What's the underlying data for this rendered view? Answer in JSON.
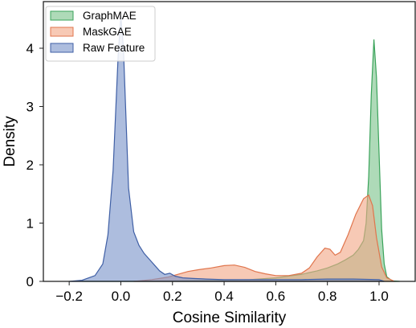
{
  "chart_data": {
    "type": "area",
    "xlabel": "Cosine Similarity",
    "ylabel": "Density",
    "xlim": [
      -0.3,
      1.14
    ],
    "ylim": [
      0,
      4.8
    ],
    "xticks": [
      "−0.2",
      "0.0",
      "0.2",
      "0.4",
      "0.6",
      "0.8",
      "1.0"
    ],
    "xtick_values": [
      -0.2,
      0.0,
      0.2,
      0.4,
      0.6,
      0.8,
      1.0
    ],
    "yticks": [
      "0",
      "1",
      "2",
      "3",
      "4"
    ],
    "ytick_values": [
      0,
      1,
      2,
      3,
      4
    ],
    "grid": false,
    "legend_position": "top-left",
    "series": [
      {
        "name": "GraphMAE",
        "fill": "#7cc48c",
        "stroke": "#3aa35a",
        "x": [
          -0.15,
          0.0,
          0.2,
          0.4,
          0.5,
          0.6,
          0.7,
          0.76,
          0.8,
          0.84,
          0.87,
          0.9,
          0.92,
          0.94,
          0.95,
          0.96,
          0.97,
          0.98,
          0.99,
          1.0,
          1.01,
          1.02,
          1.03,
          1.05,
          1.08
        ],
        "y": [
          0.0,
          0.0,
          0.01,
          0.02,
          0.03,
          0.06,
          0.12,
          0.18,
          0.23,
          0.3,
          0.37,
          0.45,
          0.55,
          0.7,
          1.0,
          1.8,
          3.2,
          4.15,
          3.5,
          2.2,
          0.9,
          0.3,
          0.08,
          0.01,
          0.0
        ]
      },
      {
        "name": "MaskGAE",
        "fill": "#f2a888",
        "stroke": "#e0754d",
        "x": [
          0.05,
          0.12,
          0.18,
          0.22,
          0.26,
          0.3,
          0.35,
          0.4,
          0.44,
          0.48,
          0.52,
          0.56,
          0.6,
          0.65,
          0.7,
          0.73,
          0.76,
          0.79,
          0.81,
          0.83,
          0.85,
          0.88,
          0.91,
          0.94,
          0.96,
          0.975,
          0.99,
          1.01,
          1.03,
          1.06
        ],
        "y": [
          0.0,
          0.03,
          0.07,
          0.12,
          0.17,
          0.2,
          0.23,
          0.27,
          0.28,
          0.24,
          0.17,
          0.13,
          0.1,
          0.1,
          0.14,
          0.23,
          0.42,
          0.57,
          0.55,
          0.45,
          0.5,
          0.8,
          1.15,
          1.42,
          1.48,
          1.3,
          0.75,
          0.25,
          0.06,
          0.0
        ]
      },
      {
        "name": "Raw Feature",
        "fill": "#7b95c9",
        "stroke": "#3f5fa5",
        "x": [
          -0.2,
          -0.15,
          -0.1,
          -0.07,
          -0.05,
          -0.03,
          -0.02,
          -0.01,
          0.0,
          0.01,
          0.02,
          0.03,
          0.05,
          0.07,
          0.09,
          0.11,
          0.13,
          0.15,
          0.17,
          0.19,
          0.21,
          0.24,
          0.28,
          0.33,
          0.4,
          0.5,
          0.6,
          0.7,
          0.8,
          0.9,
          1.0,
          1.02
        ],
        "y": [
          0.0,
          0.02,
          0.1,
          0.3,
          0.8,
          1.9,
          2.9,
          3.9,
          4.55,
          4.0,
          2.8,
          1.6,
          0.85,
          0.62,
          0.48,
          0.38,
          0.28,
          0.18,
          0.12,
          0.14,
          0.09,
          0.06,
          0.05,
          0.04,
          0.03,
          0.03,
          0.03,
          0.03,
          0.04,
          0.04,
          0.03,
          0.0
        ]
      }
    ]
  }
}
